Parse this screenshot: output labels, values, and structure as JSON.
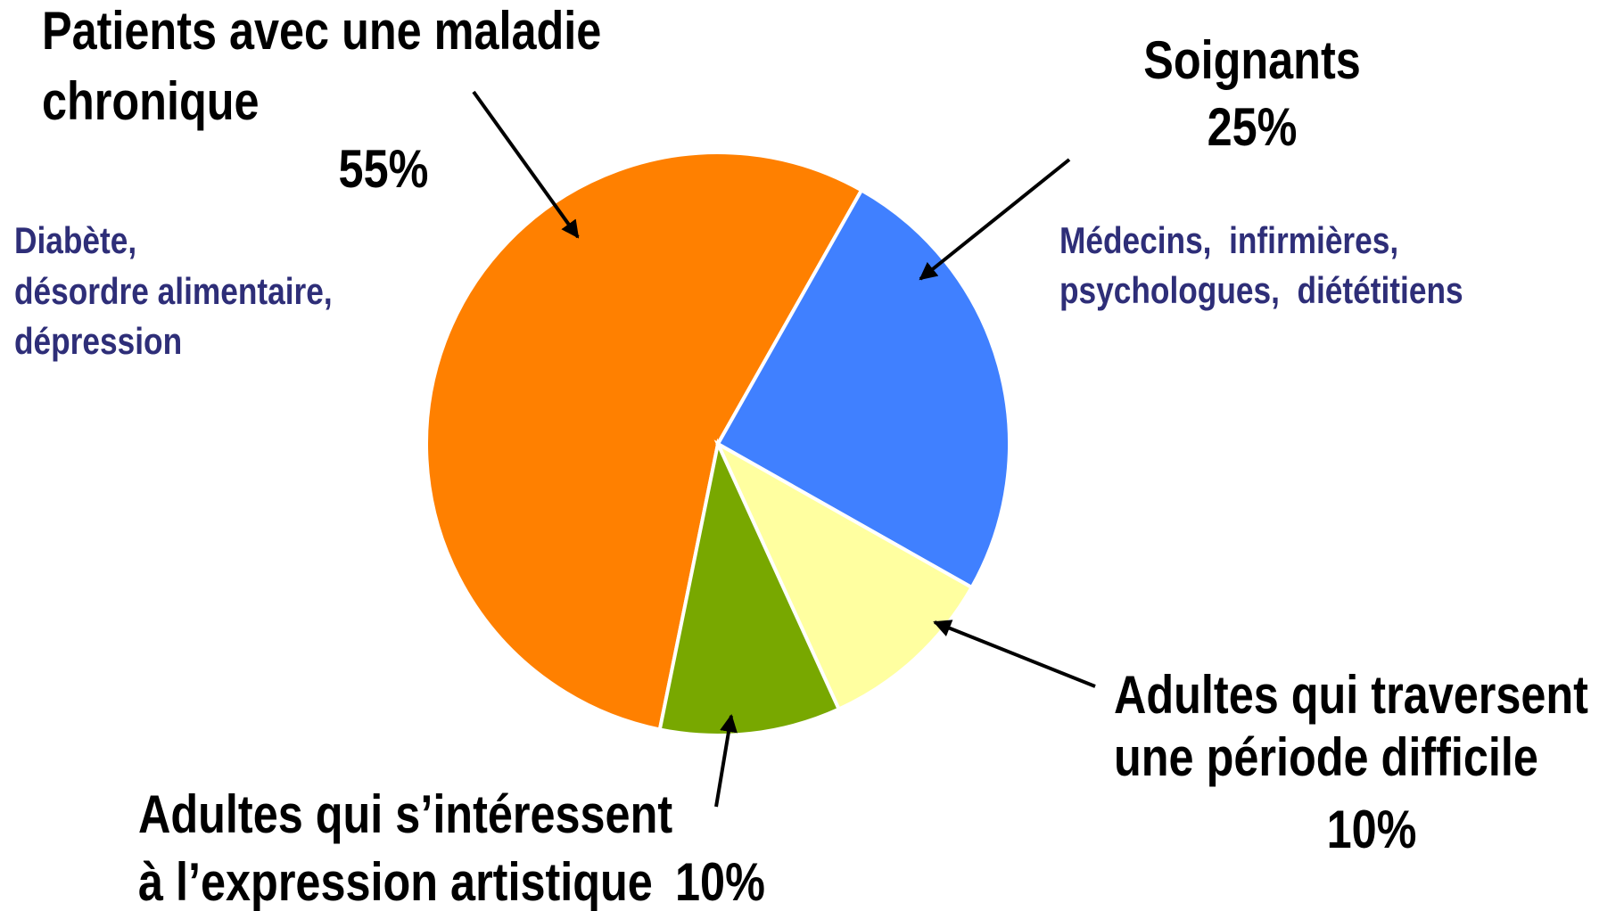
{
  "chart_data": {
    "type": "pie",
    "categories": [
      [
        "Patients avec une maladie",
        "chronique"
      ],
      [
        "Soignants"
      ],
      [
        "Adultes qui traversent",
        "une période difficile"
      ],
      [
        "Adultes qui s’intéressent",
        "à l’expression artistique"
      ]
    ],
    "values": [
      55,
      25,
      10,
      10
    ],
    "value_labels": [
      "55%",
      "25%",
      "10%",
      "10%"
    ],
    "colors": [
      "#ff8000",
      "#4080ff",
      "#ffffa0",
      "#78a800"
    ],
    "descriptions": [
      [
        "Diabète,",
        "désordre alimentaire,",
        "dépression"
      ],
      [
        "Médecins,  infirmières,",
        "psychologues,  diététitiens"
      ],
      [],
      []
    ]
  }
}
